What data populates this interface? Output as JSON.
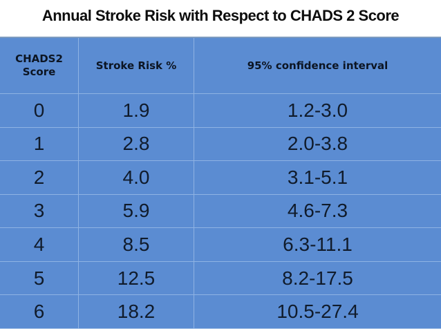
{
  "title": "Annual Stroke Risk with Respect to CHADS 2 Score",
  "table": {
    "headers": {
      "score": "CHADS2\nScore",
      "risk": "Stroke Risk %",
      "ci": "95% confidence interval"
    },
    "rows": [
      {
        "score": "0",
        "risk": "1.9",
        "ci": "1.2-3.0"
      },
      {
        "score": "1",
        "risk": "2.8",
        "ci": "2.0-3.8"
      },
      {
        "score": "2",
        "risk": "4.0",
        "ci": "3.1-5.1"
      },
      {
        "score": "3",
        "risk": "5.9",
        "ci": "4.6-7.3"
      },
      {
        "score": "4",
        "risk": "8.5",
        "ci": "6.3-11.1"
      },
      {
        "score": "5",
        "risk": "12.5",
        "ci": "8.2-17.5"
      },
      {
        "score": "6",
        "risk": "18.2",
        "ci": "10.5-27.4"
      }
    ]
  },
  "colors": {
    "table_fill": "#5b8cd2",
    "divider": "#8fb3e3",
    "top_border": "#7e9bbf",
    "title_text": "#0d0d0d",
    "cell_text": "#101b2b"
  },
  "chart_data": {
    "type": "table",
    "title": "Annual Stroke Risk with Respect to CHADS 2 Score",
    "columns": [
      "CHADS2 Score",
      "Stroke Risk %",
      "95% confidence interval"
    ],
    "rows": [
      [
        "0",
        "1.9",
        "1.2-3.0"
      ],
      [
        "1",
        "2.8",
        "2.0-3.8"
      ],
      [
        "2",
        "4.0",
        "3.1-5.1"
      ],
      [
        "3",
        "5.9",
        "4.6-7.3"
      ],
      [
        "4",
        "8.5",
        "6.3-11.1"
      ],
      [
        "5",
        "12.5",
        "8.2-17.5"
      ],
      [
        "6",
        "18.2",
        "10.5-27.4"
      ]
    ]
  }
}
